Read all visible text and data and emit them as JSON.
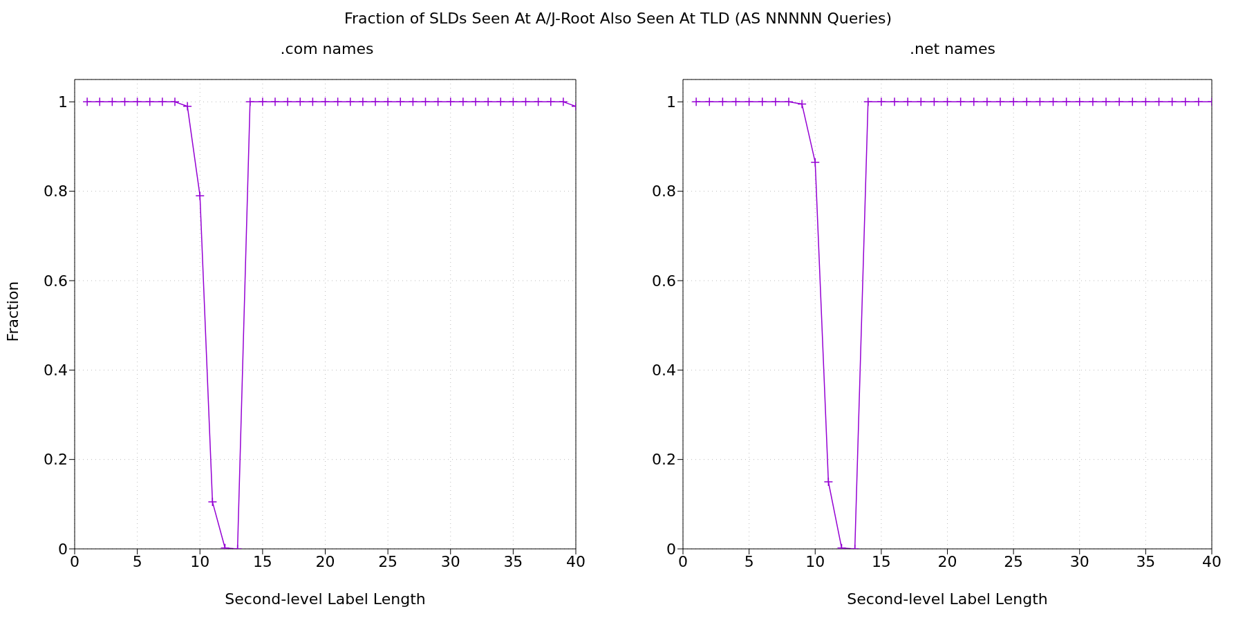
{
  "chart_data": [
    {
      "type": "line",
      "title": "Fraction of SLDs Seen At A/J-Root Also Seen At TLD (AS NNNNN Queries)",
      "subtitle": ".com names",
      "xlabel": "Second-level Label Length",
      "ylabel": "Fraction",
      "x": [
        1,
        2,
        3,
        4,
        5,
        6,
        7,
        8,
        9,
        10,
        11,
        12,
        13,
        14,
        15,
        16,
        17,
        18,
        19,
        20,
        21,
        22,
        23,
        24,
        25,
        26,
        27,
        28,
        29,
        30,
        31,
        32,
        33,
        34,
        35,
        36,
        37,
        38,
        39,
        40
      ],
      "series": [
        {
          "color": "#9400d3",
          "values": [
            1,
            1,
            1,
            1,
            1,
            1,
            1,
            1,
            0.99,
            0.79,
            0.105,
            0.002,
            0,
            1,
            1,
            1,
            1,
            1,
            1,
            1,
            1,
            1,
            1,
            1,
            1,
            1,
            1,
            1,
            1,
            1,
            1,
            1,
            1,
            1,
            1,
            1,
            1,
            1,
            1,
            0.99
          ]
        }
      ],
      "xlim": [
        0,
        40
      ],
      "xticks": [
        0,
        5,
        10,
        15,
        20,
        25,
        30,
        35,
        40
      ],
      "ylim": [
        0,
        1.05
      ],
      "yticks": [
        0,
        0.2,
        0.4,
        0.6,
        0.8,
        1
      ],
      "grid": true,
      "legend": false,
      "marker": "cross",
      "line_style": "solid"
    },
    {
      "type": "line",
      "subtitle": ".net names",
      "xlabel": "Second-level Label Length",
      "x": [
        1,
        2,
        3,
        4,
        5,
        6,
        7,
        8,
        9,
        10,
        11,
        12,
        13,
        14,
        15,
        16,
        17,
        18,
        19,
        20,
        21,
        22,
        23,
        24,
        25,
        26,
        27,
        28,
        29,
        30,
        31,
        32,
        33,
        34,
        35,
        36,
        37,
        38,
        39,
        40
      ],
      "series": [
        {
          "color": "#9400d3",
          "values": [
            1,
            1,
            1,
            1,
            1,
            1,
            1,
            1,
            0.995,
            0.865,
            0.15,
            0.002,
            0,
            1,
            1,
            1,
            1,
            1,
            1,
            1,
            1,
            1,
            1,
            1,
            1,
            1,
            1,
            1,
            1,
            1,
            1,
            1,
            1,
            1,
            1,
            1,
            1,
            1,
            1,
            1
          ]
        }
      ],
      "xlim": [
        0,
        40
      ],
      "xticks": [
        0,
        5,
        10,
        15,
        20,
        25,
        30,
        35,
        40
      ],
      "ylim": [
        0,
        1.05
      ],
      "yticks": [
        0,
        0.2,
        0.4,
        0.6,
        0.8,
        1
      ],
      "grid": true,
      "legend": false,
      "marker": "cross",
      "line_style": "solid"
    }
  ]
}
